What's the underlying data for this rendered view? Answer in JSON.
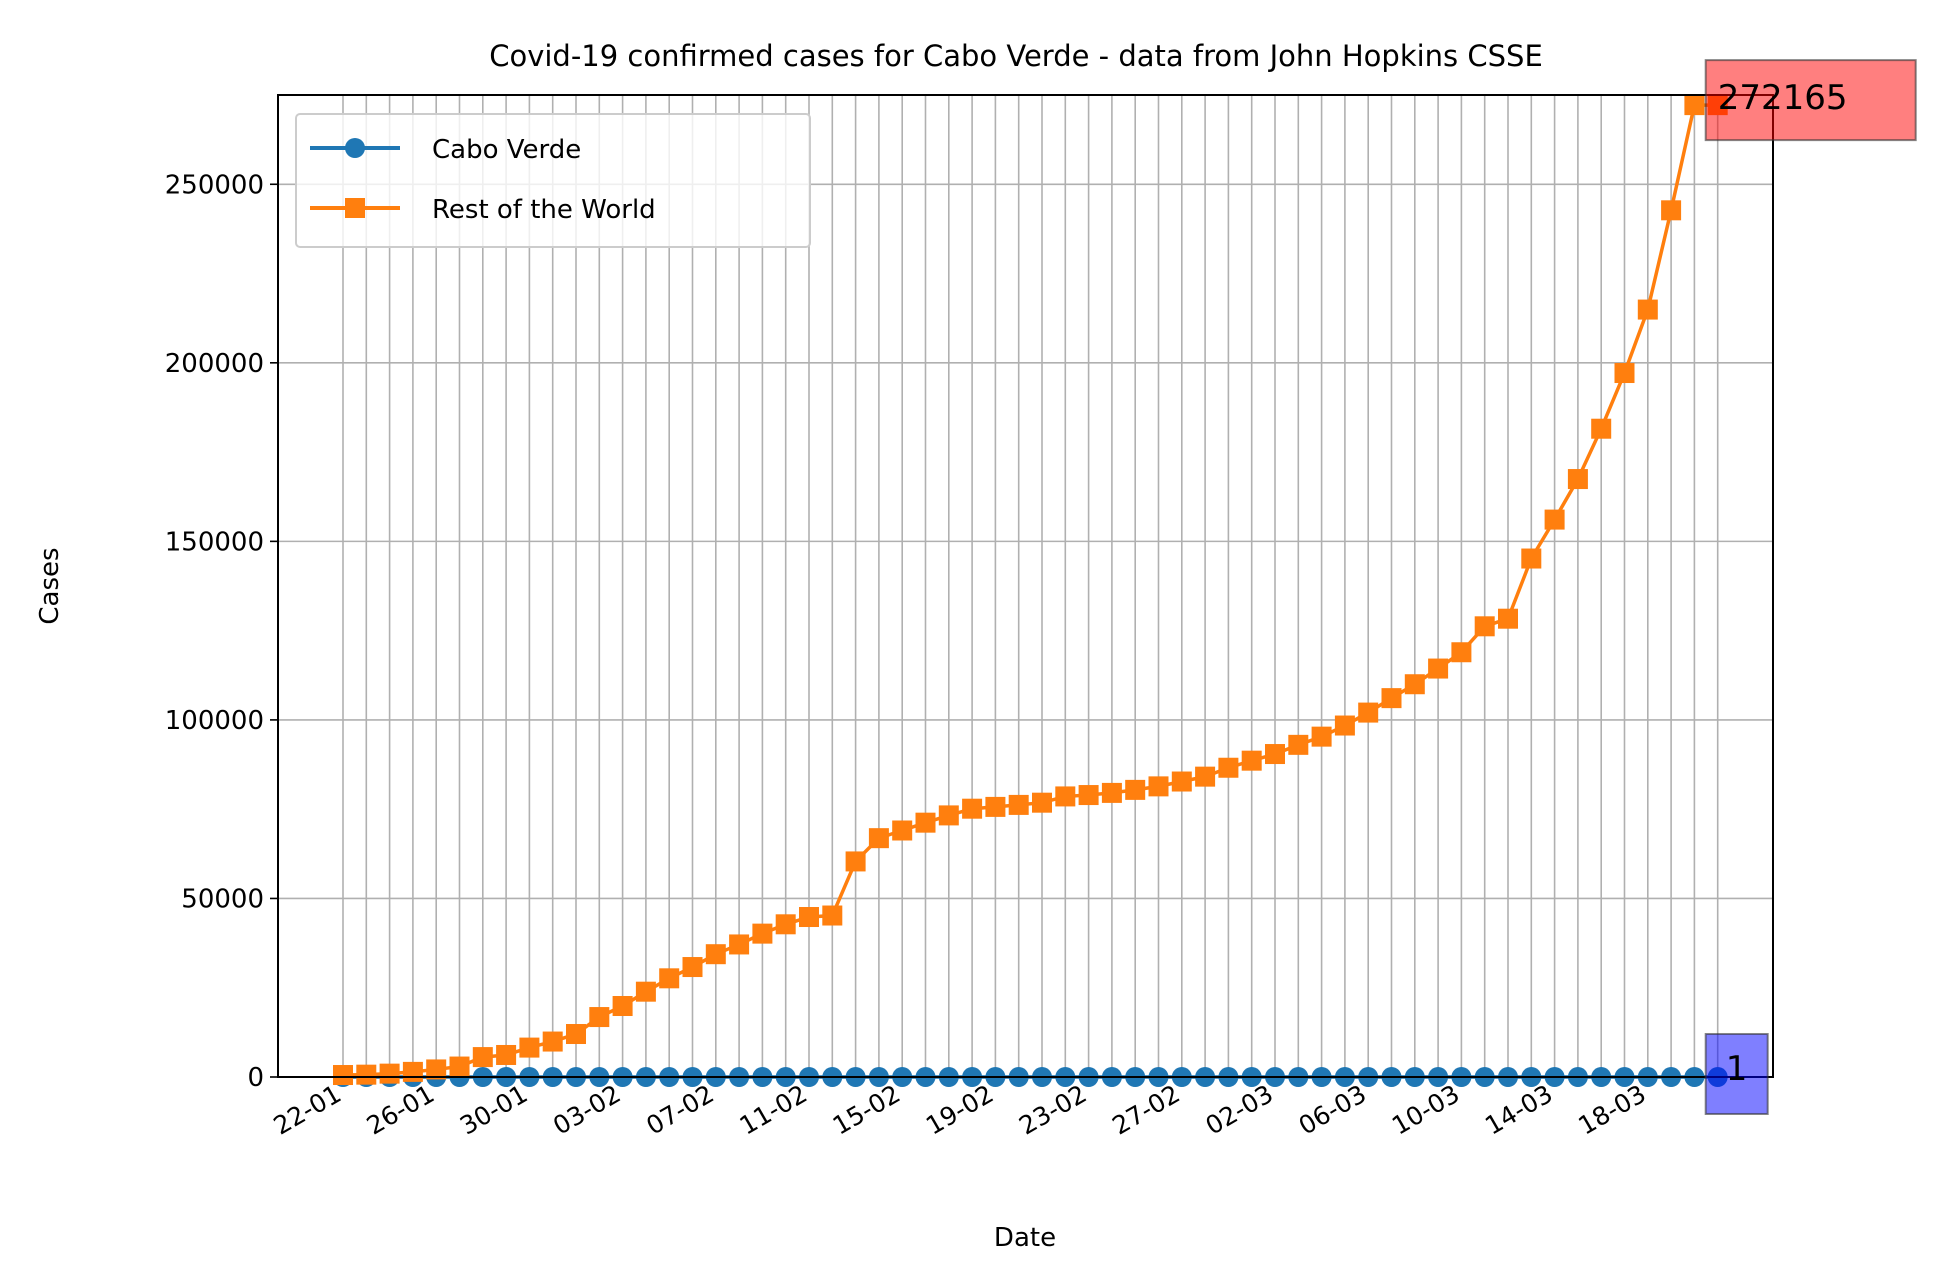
{
  "chart_data": {
    "type": "line",
    "title": "Covid-19 confirmed cases for Cabo Verde - data from John Hopkins CSSE",
    "xlabel": "Date",
    "ylabel": "Cases",
    "ylim": [
      0,
      275000
    ],
    "x_start": "2020-01-22",
    "x_end": "2020-03-21",
    "x_ticks": [
      "22-01",
      "26-01",
      "30-01",
      "03-02",
      "07-02",
      "11-02",
      "15-02",
      "19-02",
      "23-02",
      "27-02",
      "02-03",
      "06-03",
      "10-03",
      "14-03",
      "18-03"
    ],
    "y_ticks": [
      0,
      50000,
      100000,
      150000,
      200000,
      250000
    ],
    "grid": true,
    "legend_position": "upper left",
    "series": [
      {
        "name": "Cabo Verde",
        "color": "#1f77b4",
        "marker": "circle",
        "values": [
          0,
          0,
          0,
          0,
          0,
          0,
          0,
          0,
          0,
          0,
          0,
          0,
          0,
          0,
          0,
          0,
          0,
          0,
          0,
          0,
          0,
          0,
          0,
          0,
          0,
          0,
          0,
          0,
          0,
          0,
          0,
          0,
          0,
          0,
          0,
          0,
          0,
          0,
          0,
          0,
          0,
          0,
          0,
          0,
          0,
          0,
          0,
          0,
          0,
          0,
          0,
          0,
          0,
          0,
          0,
          0,
          0,
          0,
          0,
          1
        ]
      },
      {
        "name": "Rest of the World",
        "color": "#ff7f0e",
        "marker": "square",
        "values": [
          555,
          654,
          941,
          1434,
          2118,
          2927,
          5578,
          6166,
          8234,
          9927,
          12038,
          16787,
          19881,
          23892,
          27635,
          30794,
          34391,
          37120,
          40150,
          42762,
          44802,
          45221,
          60368,
          66885,
          69030,
          71224,
          73258,
          75136,
          75639,
          76197,
          76819,
          78572,
          78958,
          79561,
          80406,
          81388,
          82746,
          84112,
          86604,
          88585,
          90443,
          93016,
          95314,
          98425,
          102050,
          106099,
          109991,
          114381,
          118948,
          126214,
          128343,
          145193,
          156097,
          167449,
          181546,
          197142,
          214910,
          242708,
          272166,
          272165
        ]
      }
    ],
    "annotations": [
      {
        "text": "272165",
        "series": "Rest of the World",
        "color": "#ff0000"
      },
      {
        "text": "1",
        "series": "Cabo Verde",
        "color": "#0000ff"
      }
    ]
  }
}
